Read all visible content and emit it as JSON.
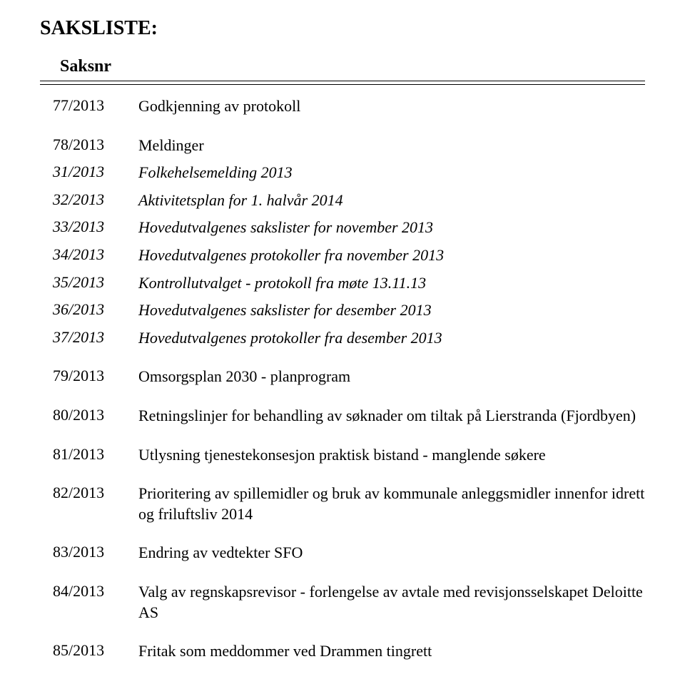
{
  "heading": "SAKSLISTE:",
  "subheading": "Saksnr",
  "rows": [
    {
      "num": "77/2013",
      "text": "Godkjenning av protokoll",
      "italic": false,
      "gapAfter": true
    },
    {
      "num": "78/2013",
      "text": "Meldinger",
      "italic": false,
      "gapAfter": false
    },
    {
      "num": "31/2013",
      "text": "Folkehelsemelding 2013",
      "italic": true,
      "gapAfter": false
    },
    {
      "num": "32/2013",
      "text": "Aktivitetsplan for 1. halvår 2014",
      "italic": true,
      "gapAfter": false
    },
    {
      "num": "33/2013",
      "text": "Hovedutvalgenes sakslister for november 2013",
      "italic": true,
      "gapAfter": false
    },
    {
      "num": "34/2013",
      "text": "Hovedutvalgenes protokoller fra november 2013",
      "italic": true,
      "gapAfter": false
    },
    {
      "num": "35/2013",
      "text": "Kontrollutvalget - protokoll fra møte 13.11.13",
      "italic": true,
      "gapAfter": false
    },
    {
      "num": "36/2013",
      "text": "Hovedutvalgenes sakslister for desember 2013",
      "italic": true,
      "gapAfter": false
    },
    {
      "num": "37/2013",
      "text": "Hovedutvalgenes protokoller fra desember 2013",
      "italic": true,
      "gapAfter": true
    },
    {
      "num": "79/2013",
      "text": "Omsorgsplan 2030 - planprogram",
      "italic": false,
      "gapAfter": true
    },
    {
      "num": "80/2013",
      "text": "Retningslinjer for behandling av søknader om tiltak på Lierstranda (Fjordbyen)",
      "italic": false,
      "gapAfter": true
    },
    {
      "num": "81/2013",
      "text": "Utlysning tjenestekonsesjon praktisk bistand - manglende søkere",
      "italic": false,
      "gapAfter": true
    },
    {
      "num": "82/2013",
      "text": "Prioritering av spillemidler og bruk av kommunale anleggsmidler innenfor idrett og friluftsliv 2014",
      "italic": false,
      "gapAfter": true
    },
    {
      "num": "83/2013",
      "text": "Endring av vedtekter SFO",
      "italic": false,
      "gapAfter": true
    },
    {
      "num": "84/2013",
      "text": "Valg av regnskapsrevisor - forlengelse av avtale med revisjonsselskapet Deloitte AS",
      "italic": false,
      "gapAfter": true
    },
    {
      "num": "85/2013",
      "text": "Fritak som meddommer ved Drammen tingrett",
      "italic": false,
      "gapAfter": false
    }
  ]
}
